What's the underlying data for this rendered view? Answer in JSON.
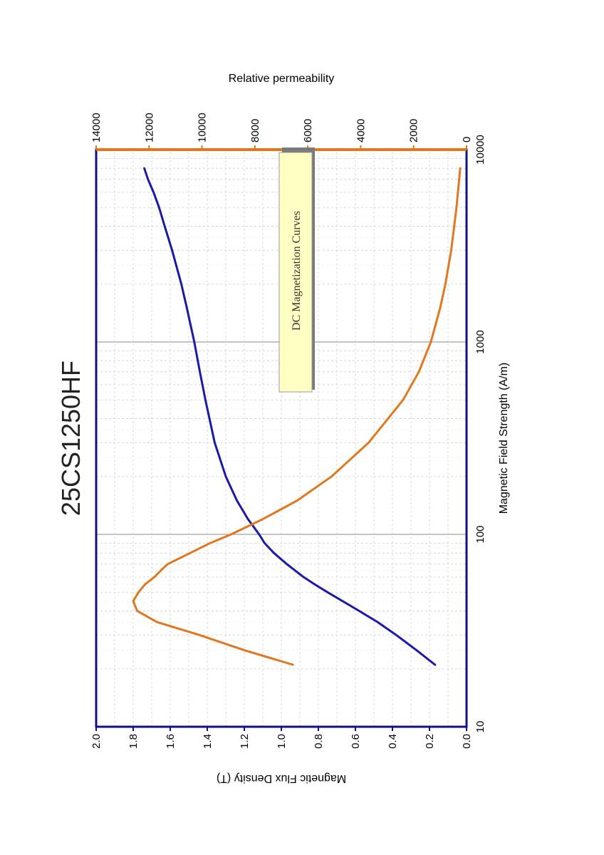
{
  "chart_data": {
    "type": "line",
    "title": "25CS1250HF",
    "xlabel": "Magnetic Field Strength (A/m)",
    "x_scale": "log",
    "xlim": [
      10,
      10000
    ],
    "x_ticks": [
      "10",
      "100",
      "1000",
      "10000"
    ],
    "ylabel_left": "Magnetic Flux Density (T)",
    "ylim_left": [
      0,
      2.0
    ],
    "y_ticks_left": [
      "0.0",
      "0.2",
      "0.4",
      "0.6",
      "0.8",
      "1.0",
      "1.2",
      "1.4",
      "1.6",
      "1.8",
      "2.0"
    ],
    "ylabel_right": "Relative permeability",
    "ylim_right": [
      0,
      14000
    ],
    "y_ticks_right": [
      "0",
      "2000",
      "4000",
      "6000",
      "8000",
      "10000",
      "12000",
      "14000"
    ],
    "annotation": "DC Magnetization Curves",
    "grid": true,
    "orientation": "rotated 90° counter-clockwise",
    "series": [
      {
        "axis": "left",
        "color": "#1a1aa6",
        "x": [
          21,
          25,
          30,
          35,
          40,
          45,
          50,
          55,
          60,
          70,
          80,
          90,
          100,
          120,
          150,
          200,
          300,
          500,
          700,
          1000,
          1500,
          2000,
          3000,
          4000,
          5000,
          6000,
          7000,
          8000
        ],
        "y": [
          0.17,
          0.27,
          0.38,
          0.48,
          0.58,
          0.67,
          0.75,
          0.82,
          0.88,
          0.97,
          1.04,
          1.09,
          1.12,
          1.18,
          1.24,
          1.3,
          1.36,
          1.41,
          1.44,
          1.47,
          1.51,
          1.54,
          1.59,
          1.63,
          1.66,
          1.69,
          1.72,
          1.74
        ]
      },
      {
        "axis": "right",
        "color": "#e07820",
        "x": [
          21,
          25,
          30,
          35,
          40,
          45,
          50,
          55,
          60,
          65,
          70,
          80,
          90,
          100,
          120,
          150,
          200,
          300,
          500,
          700,
          1000,
          1500,
          2000,
          3000,
          5000,
          8000
        ],
        "y": [
          6560,
          8400,
          10100,
          11700,
          12450,
          12600,
          12400,
          12150,
          11800,
          11550,
          11300,
          10450,
          9700,
          8900,
          7700,
          6400,
          5100,
          3700,
          2400,
          1800,
          1350,
          1000,
          800,
          580,
          380,
          240
        ]
      }
    ]
  }
}
